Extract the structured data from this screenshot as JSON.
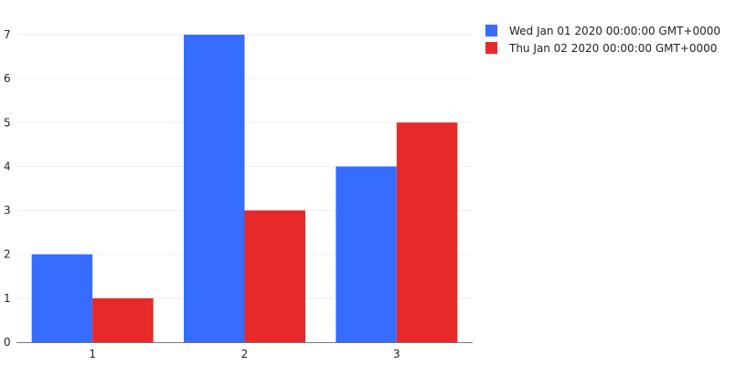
{
  "chart_data": {
    "type": "bar",
    "categories": [
      "1",
      "2",
      "3"
    ],
    "series": [
      {
        "name": "Wed Jan 01 2020 00:00:00 GMT+0000",
        "values": [
          2,
          7,
          4
        ],
        "color": "#366cff"
      },
      {
        "name": "Thu Jan 02 2020 00:00:00 GMT+0000",
        "values": [
          1,
          3,
          5
        ],
        "color": "#e8292a"
      }
    ],
    "y_ticks": [
      "0",
      "1",
      "2",
      "3",
      "4",
      "5",
      "6",
      "7"
    ],
    "ylim": [
      0,
      7
    ],
    "grid": true,
    "legend_position": "top-right",
    "colors": {
      "grid": "#eeeeee",
      "axis": "#777777",
      "text": "#222222"
    }
  }
}
